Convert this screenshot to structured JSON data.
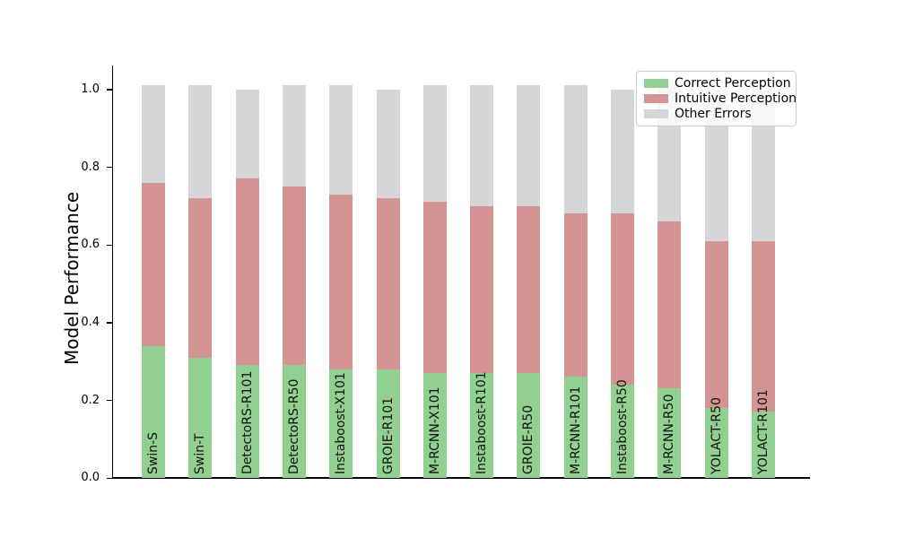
{
  "figure": {
    "background_color": "#ffffff",
    "text_color": "#000000"
  },
  "chart_data": {
    "type": "bar",
    "stacked": true,
    "orientation": "vertical",
    "title": "",
    "xlabel": "",
    "ylabel": "Model Performance",
    "ylim": [
      0,
      1.065
    ],
    "yticks": [
      "0.0",
      "0.2",
      "0.4",
      "0.6",
      "0.8",
      "1.0"
    ],
    "ytick_values": [
      0.0,
      0.2,
      0.4,
      0.6,
      0.8,
      1.0
    ],
    "grid": false,
    "legend_position": "upper right",
    "category_label_style": "rotated-90-inside-bar-at-bottom",
    "categories": [
      "Swin-S",
      "Swin-T",
      "DetectoRS-R101",
      "DetectoRS-R50",
      "Instaboost-X101",
      "GROIE-R101",
      "M-RCNN-X101",
      "Instaboost-R101",
      "GROIE-R50",
      "M-RCNN-R101",
      "Instaboost-R50",
      "M-RCNN-R50",
      "YOLACT-R50",
      "YOLACT-R101"
    ],
    "series": [
      {
        "name": "Correct Perception",
        "color": "#92d092",
        "values": [
          0.34,
          0.31,
          0.29,
          0.29,
          0.28,
          0.28,
          0.27,
          0.27,
          0.27,
          0.26,
          0.24,
          0.23,
          0.18,
          0.17
        ]
      },
      {
        "name": "Intuitive Perception",
        "color": "#d49494",
        "values": [
          0.42,
          0.41,
          0.48,
          0.46,
          0.45,
          0.44,
          0.44,
          0.43,
          0.43,
          0.42,
          0.44,
          0.43,
          0.43,
          0.44
        ]
      },
      {
        "name": "Other Errors",
        "color": "#d6d6d6",
        "values": [
          0.25,
          0.29,
          0.23,
          0.26,
          0.28,
          0.28,
          0.3,
          0.31,
          0.31,
          0.33,
          0.32,
          0.35,
          0.39,
          0.39
        ]
      }
    ],
    "bar_totals": [
      1.01,
      1.01,
      1.0,
      1.01,
      1.01,
      1.0,
      1.01,
      1.01,
      1.01,
      1.01,
      1.0,
      1.01,
      1.0,
      1.0
    ]
  },
  "legend": {
    "items": [
      {
        "label": "Correct Perception",
        "color": "#92d092"
      },
      {
        "label": "Intuitive Perception",
        "color": "#d49494"
      },
      {
        "label": "Other Errors",
        "color": "#d6d6d6"
      }
    ]
  }
}
